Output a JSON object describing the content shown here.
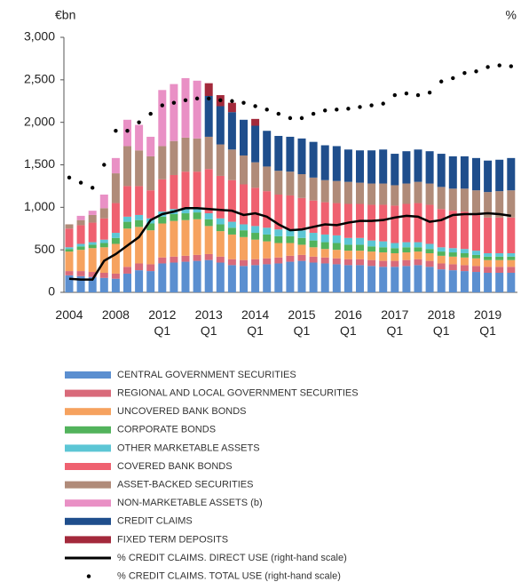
{
  "chart_data": {
    "type": "bar",
    "stacked": true,
    "y_label": "€bn",
    "y2_label": "%",
    "categories": [
      "2004",
      null,
      null,
      null,
      "2008",
      null,
      null,
      null,
      "2012\nQ1",
      null,
      null,
      null,
      "2013\nQ1",
      null,
      null,
      null,
      "2014\nQ1",
      null,
      null,
      null,
      "2015\nQ1",
      null,
      null,
      null,
      "2016\nQ1",
      null,
      null,
      null,
      "2017\nQ1",
      null,
      null,
      null,
      "2018\nQ1",
      null,
      null,
      null,
      "2019\nQ1",
      null,
      null
    ],
    "ylim": [
      0,
      3000
    ],
    "yticks": [
      0,
      500,
      {
        "value": 1000,
        "label": "1,000"
      },
      {
        "value": 1500,
        "label": "1,500"
      },
      {
        "value": 2000,
        "label": "2,000"
      },
      {
        "value": 2500,
        "label": "2,500"
      },
      {
        "value": 3000,
        "label": "3,000"
      }
    ],
    "y2lim": [
      0,
      60
    ],
    "series": [
      {
        "name": "CENTRAL GOVERNMENT SECURITIES",
        "color": "#5b8fd0",
        "values": [
          200,
          190,
          180,
          170,
          160,
          220,
          260,
          250,
          340,
          350,
          360,
          370,
          380,
          350,
          320,
          310,
          320,
          330,
          340,
          360,
          370,
          350,
          340,
          330,
          320,
          320,
          310,
          300,
          300,
          310,
          320,
          300,
          270,
          260,
          250,
          240,
          230,
          230,
          230
        ]
      },
      {
        "name": "REGIONAL AND LOCAL GOVERNMENT SECURITIES",
        "color": "#d96a7a",
        "values": [
          50,
          60,
          60,
          60,
          60,
          80,
          80,
          80,
          70,
          70,
          70,
          70,
          70,
          70,
          70,
          70,
          70,
          70,
          70,
          70,
          70,
          70,
          70,
          70,
          70,
          70,
          70,
          70,
          70,
          70,
          70,
          70,
          70,
          70,
          70,
          70,
          70,
          70,
          70
        ]
      },
      {
        "name": "UNCOVERED BANK BONDS",
        "color": "#f6a25f",
        "values": [
          230,
          250,
          280,
          300,
          350,
          450,
          430,
          400,
          400,
          420,
          420,
          420,
          330,
          300,
          290,
          270,
          230,
          200,
          170,
          150,
          120,
          110,
          100,
          100,
          100,
          100,
          100,
          100,
          90,
          90,
          90,
          90,
          90,
          90,
          90,
          90,
          80,
          80,
          80
        ]
      },
      {
        "name": "CORPORATE BONDS",
        "color": "#52b35c",
        "values": [
          30,
          40,
          40,
          50,
          70,
          80,
          80,
          80,
          80,
          80,
          80,
          80,
          80,
          80,
          80,
          80,
          80,
          80,
          80,
          80,
          80,
          80,
          80,
          80,
          70,
          70,
          60,
          60,
          60,
          60,
          50,
          50,
          50,
          50,
          50,
          40,
          40,
          40,
          40
        ]
      },
      {
        "name": "OTHER MARKETABLE ASSETS",
        "color": "#5cc6d5",
        "values": [
          20,
          30,
          30,
          40,
          60,
          60,
          60,
          60,
          60,
          60,
          60,
          60,
          70,
          70,
          70,
          70,
          80,
          80,
          80,
          80,
          90,
          90,
          90,
          90,
          80,
          80,
          70,
          70,
          60,
          60,
          60,
          60,
          50,
          50,
          50,
          50,
          40,
          40,
          40
        ]
      },
      {
        "name": "COVERED BANK BONDS",
        "color": "#ef6170",
        "values": [
          220,
          220,
          230,
          250,
          350,
          360,
          340,
          330,
          380,
          400,
          430,
          420,
          520,
          500,
          490,
          470,
          450,
          430,
          410,
          400,
          380,
          380,
          380,
          380,
          400,
          400,
          420,
          430,
          440,
          450,
          460,
          460,
          450,
          440,
          440,
          430,
          420,
          420,
          420
        ]
      },
      {
        "name": "ASSET-BACKED SECURITIES",
        "color": "#b08b79",
        "values": [
          50,
          60,
          90,
          120,
          350,
          470,
          420,
          400,
          390,
          400,
          400,
          390,
          380,
          370,
          360,
          340,
          300,
          290,
          280,
          280,
          280,
          270,
          260,
          260,
          260,
          250,
          250,
          250,
          240,
          240,
          250,
          250,
          260,
          260,
          270,
          280,
          300,
          310,
          320
        ]
      },
      {
        "name": "NON-MARKETABLE ASSETS (b)",
        "color": "#e990c5",
        "values": [
          0,
          50,
          50,
          160,
          180,
          310,
          300,
          230,
          660,
          670,
          700,
          680,
          0,
          0,
          0,
          0,
          0,
          0,
          0,
          0,
          0,
          0,
          0,
          0,
          0,
          0,
          0,
          0,
          0,
          0,
          0,
          0,
          0,
          0,
          0,
          0,
          0,
          0,
          0
        ]
      },
      {
        "name": "CREDIT CLAIMS",
        "color": "#1f4e8c",
        "values": [
          0,
          0,
          0,
          0,
          0,
          0,
          0,
          0,
          0,
          0,
          0,
          0,
          480,
          450,
          440,
          420,
          430,
          420,
          410,
          410,
          420,
          420,
          410,
          410,
          380,
          380,
          390,
          400,
          370,
          380,
          380,
          380,
          390,
          380,
          380,
          380,
          370,
          370,
          380
        ]
      },
      {
        "name": "FIXED TERM DEPOSITS",
        "color": "#a3293b",
        "values": [
          0,
          0,
          0,
          0,
          0,
          0,
          0,
          0,
          0,
          0,
          0,
          0,
          150,
          130,
          110,
          0,
          80,
          0,
          0,
          0,
          0,
          0,
          0,
          0,
          0,
          0,
          0,
          0,
          0,
          0,
          0,
          0,
          0,
          0,
          0,
          0,
          0,
          0,
          0
        ]
      },
      {
        "name": "% CREDIT CLAIMS. DIRECT USE (right-hand scale)",
        "type": "line",
        "axis": "y2",
        "color": "#000000",
        "values": [
          3.2,
          3,
          3,
          7.4,
          9,
          11,
          13,
          17,
          18.4,
          19,
          19.8,
          19.8,
          19.6,
          19.4,
          19.2,
          18.2,
          18.6,
          17.8,
          16,
          14.6,
          14.8,
          15.4,
          16,
          15.8,
          16.4,
          16.8,
          16.8,
          17,
          17.6,
          18,
          17.8,
          16.6,
          17,
          18.2,
          18.4,
          18.4,
          18.6,
          18.4,
          18
        ]
      },
      {
        "name": "% CREDIT CLAIMS. TOTAL USE (right-hand scale)",
        "type": "dots",
        "axis": "y2",
        "color": "#000000",
        "values": [
          27,
          25.8,
          24.6,
          30,
          38,
          38,
          40,
          42,
          44,
          44.6,
          45.2,
          45.6,
          45.6,
          45.2,
          45,
          44.6,
          43.8,
          43,
          42,
          41,
          41,
          42,
          42.8,
          43,
          43.2,
          43.6,
          44,
          44.4,
          46.4,
          46.8,
          46.4,
          47,
          49.6,
          50.4,
          51.6,
          52,
          53,
          53.4,
          53.2
        ]
      }
    ]
  }
}
